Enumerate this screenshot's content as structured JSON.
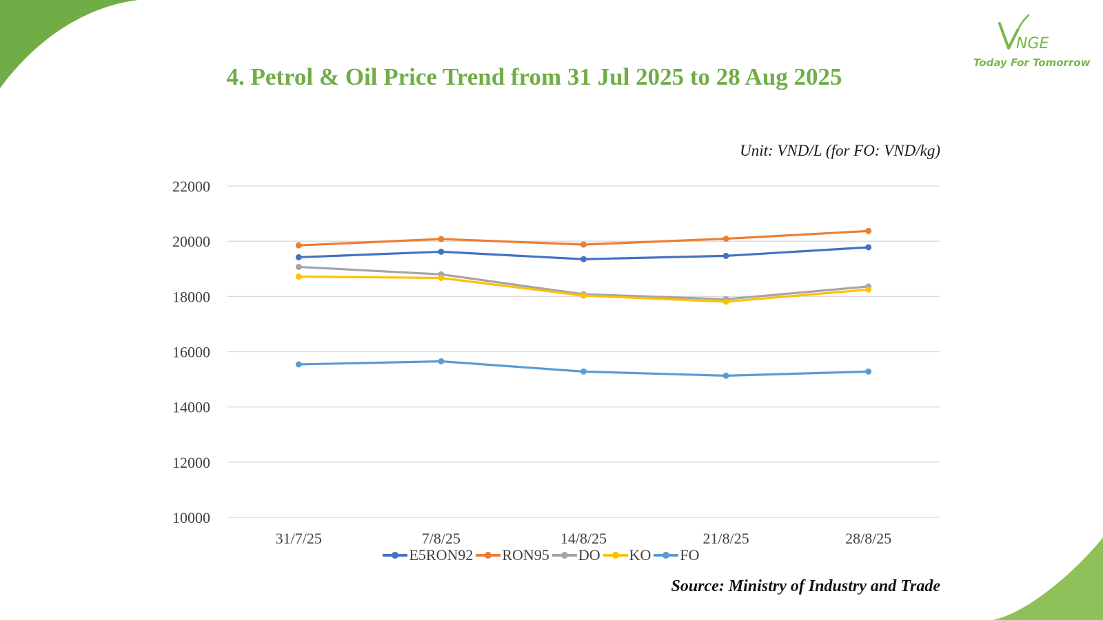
{
  "title": "4. Petrol & Oil Price Trend from 31 Jul 2025 to 28 Aug 2025",
  "unit_note": "Unit: VND/L (for FO: VND/kg)",
  "source": "Source: Ministry of Industry and Trade",
  "logo": {
    "text": "VNGE",
    "tagline": "Today For Tomorrow",
    "color": "#7ab648"
  },
  "decor": {
    "corner_color": "#70ad47",
    "corner_color_light": "#8fc15a"
  },
  "chart_data": {
    "type": "line",
    "categories": [
      "31/7/25",
      "7/8/25",
      "14/8/25",
      "21/8/25",
      "28/8/25"
    ],
    "ylim": [
      10000,
      22000
    ],
    "yticks": [
      10000,
      12000,
      14000,
      16000,
      18000,
      20000,
      22000
    ],
    "grid": true,
    "legend": "bottom",
    "series": [
      {
        "name": "E5RON92",
        "color": "#4472c4",
        "values": [
          19420,
          19620,
          19350,
          19470,
          19780
        ]
      },
      {
        "name": "RON95",
        "color": "#ed7d31",
        "values": [
          19850,
          20080,
          19880,
          20090,
          20370
        ]
      },
      {
        "name": "DO",
        "color": "#a5a5a5",
        "values": [
          19070,
          18800,
          18080,
          17900,
          18360
        ]
      },
      {
        "name": "KO",
        "color": "#ffc000",
        "values": [
          18720,
          18670,
          18030,
          17810,
          18250
        ]
      },
      {
        "name": "FO",
        "color": "#5b9bd5",
        "values": [
          15540,
          15650,
          15280,
          15130,
          15280
        ]
      }
    ]
  }
}
